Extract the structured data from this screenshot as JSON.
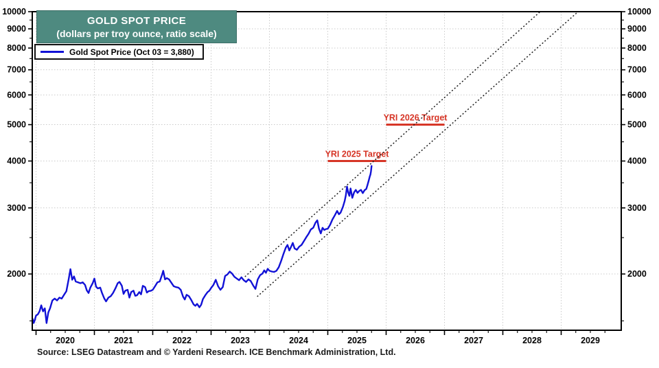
{
  "title": {
    "line1": "GOLD SPOT PRICE",
    "line2": "(dollars per troy ounce, ratio scale)"
  },
  "legend": {
    "label": "Gold Spot Price (Oct 03 = 3,880)"
  },
  "source": "Source: LSEG Datastream and © Yardeni Research. ICE Benchmark Administration, Ltd.",
  "colors": {
    "title_bg": "#4e8a80",
    "title_text": "#ffffff",
    "line": "#1111d6",
    "annotation": "#d63425",
    "grid": "#c9c9c9",
    "channel": "#1a1a1a",
    "axis": "#000000"
  },
  "chart_data": {
    "type": "line",
    "title": "GOLD SPOT PRICE",
    "subtitle": "(dollars per troy ounce, ratio scale)",
    "ylabel": "dollars per troy ounce",
    "yscale": "log",
    "ylim": [
      1420,
      10000
    ],
    "xlim": [
      2019.94,
      2030.03
    ],
    "grid": true,
    "legend_position": "top-left",
    "y_ticks": [
      2000,
      3000,
      4000,
      5000,
      6000,
      7000,
      8000,
      9000,
      10000
    ],
    "y_tick_labels": [
      "2000",
      "3000",
      "4000",
      "5000",
      "6000",
      "7000",
      "8000",
      "9000",
      "10000"
    ],
    "y_minor_ticks": [
      1500,
      2500,
      3500,
      4500,
      5500,
      6500,
      7500,
      8500,
      9500
    ],
    "x_years": [
      "2020",
      "2021",
      "2022",
      "2023",
      "2024",
      "2025",
      "2026",
      "2027",
      "2028",
      "2029"
    ],
    "annotations": [
      {
        "label": "YRI 2025 Target",
        "value": 4000,
        "span": [
          2025.0,
          2026.0
        ]
      },
      {
        "label": "YRI 2026 Target",
        "value": 5000,
        "span": [
          2026.0,
          2027.0
        ]
      }
    ],
    "channel_lines": [
      {
        "name": "upper-trend-channel",
        "points": [
          [
            2023.58,
            1967
          ],
          [
            2028.64,
            10000
          ]
        ]
      },
      {
        "name": "lower-trend-channel",
        "points": [
          [
            2023.79,
            1741
          ],
          [
            2029.29,
            10000
          ]
        ]
      }
    ],
    "series": [
      {
        "name": "Gold Spot Price (Oct 03 = 3,880)",
        "color": "#1111d6",
        "last_point_label": "Oct 03 = 3,880",
        "points": [
          [
            2019.94,
            1520
          ],
          [
            2019.96,
            1480
          ],
          [
            2019.98,
            1510
          ],
          [
            2020.0,
            1550
          ],
          [
            2020.03,
            1560
          ],
          [
            2020.06,
            1590
          ],
          [
            2020.09,
            1650
          ],
          [
            2020.12,
            1590
          ],
          [
            2020.15,
            1620
          ],
          [
            2020.18,
            1480
          ],
          [
            2020.21,
            1580
          ],
          [
            2020.24,
            1620
          ],
          [
            2020.28,
            1700
          ],
          [
            2020.32,
            1720
          ],
          [
            2020.36,
            1700
          ],
          [
            2020.4,
            1730
          ],
          [
            2020.44,
            1720
          ],
          [
            2020.48,
            1760
          ],
          [
            2020.52,
            1800
          ],
          [
            2020.56,
            1940
          ],
          [
            2020.59,
            2060
          ],
          [
            2020.62,
            1930
          ],
          [
            2020.65,
            1970
          ],
          [
            2020.68,
            1910
          ],
          [
            2020.72,
            1900
          ],
          [
            2020.76,
            1890
          ],
          [
            2020.8,
            1900
          ],
          [
            2020.84,
            1870
          ],
          [
            2020.87,
            1810
          ],
          [
            2020.9,
            1780
          ],
          [
            2020.93,
            1840
          ],
          [
            2020.97,
            1890
          ],
          [
            2021.0,
            1945
          ],
          [
            2021.03,
            1850
          ],
          [
            2021.06,
            1830
          ],
          [
            2021.1,
            1840
          ],
          [
            2021.13,
            1780
          ],
          [
            2021.17,
            1720
          ],
          [
            2021.2,
            1690
          ],
          [
            2021.24,
            1730
          ],
          [
            2021.28,
            1745
          ],
          [
            2021.32,
            1780
          ],
          [
            2021.36,
            1830
          ],
          [
            2021.4,
            1890
          ],
          [
            2021.43,
            1905
          ],
          [
            2021.47,
            1860
          ],
          [
            2021.5,
            1770
          ],
          [
            2021.53,
            1805
          ],
          [
            2021.57,
            1815
          ],
          [
            2021.6,
            1730
          ],
          [
            2021.63,
            1790
          ],
          [
            2021.67,
            1805
          ],
          [
            2021.7,
            1750
          ],
          [
            2021.73,
            1755
          ],
          [
            2021.77,
            1790
          ],
          [
            2021.8,
            1765
          ],
          [
            2021.83,
            1860
          ],
          [
            2021.87,
            1845
          ],
          [
            2021.9,
            1785
          ],
          [
            2021.93,
            1800
          ],
          [
            2021.97,
            1805
          ],
          [
            2022.0,
            1815
          ],
          [
            2022.04,
            1855
          ],
          [
            2022.08,
            1900
          ],
          [
            2022.12,
            1910
          ],
          [
            2022.16,
            1990
          ],
          [
            2022.18,
            2040
          ],
          [
            2022.21,
            1935
          ],
          [
            2022.24,
            1950
          ],
          [
            2022.28,
            1935
          ],
          [
            2022.32,
            1895
          ],
          [
            2022.36,
            1855
          ],
          [
            2022.4,
            1845
          ],
          [
            2022.44,
            1840
          ],
          [
            2022.48,
            1815
          ],
          [
            2022.52,
            1740
          ],
          [
            2022.55,
            1710
          ],
          [
            2022.58,
            1760
          ],
          [
            2022.62,
            1745
          ],
          [
            2022.66,
            1705
          ],
          [
            2022.7,
            1660
          ],
          [
            2022.73,
            1645
          ],
          [
            2022.76,
            1665
          ],
          [
            2022.8,
            1630
          ],
          [
            2022.83,
            1655
          ],
          [
            2022.86,
            1715
          ],
          [
            2022.9,
            1755
          ],
          [
            2022.94,
            1790
          ],
          [
            2022.97,
            1805
          ],
          [
            2023.0,
            1835
          ],
          [
            2023.04,
            1870
          ],
          [
            2023.08,
            1930
          ],
          [
            2023.12,
            1855
          ],
          [
            2023.16,
            1815
          ],
          [
            2023.2,
            1845
          ],
          [
            2023.24,
            1975
          ],
          [
            2023.28,
            1995
          ],
          [
            2023.32,
            2030
          ],
          [
            2023.36,
            2005
          ],
          [
            2023.4,
            1965
          ],
          [
            2023.44,
            1945
          ],
          [
            2023.48,
            1925
          ],
          [
            2023.52,
            1960
          ],
          [
            2023.56,
            1925
          ],
          [
            2023.6,
            1905
          ],
          [
            2023.64,
            1935
          ],
          [
            2023.68,
            1915
          ],
          [
            2023.72,
            1865
          ],
          [
            2023.76,
            1825
          ],
          [
            2023.8,
            1935
          ],
          [
            2023.84,
            1985
          ],
          [
            2023.88,
            2005
          ],
          [
            2023.91,
            2045
          ],
          [
            2023.94,
            2015
          ],
          [
            2023.97,
            2065
          ],
          [
            2024.0,
            2040
          ],
          [
            2024.04,
            2030
          ],
          [
            2024.08,
            2025
          ],
          [
            2024.12,
            2040
          ],
          [
            2024.16,
            2085
          ],
          [
            2024.2,
            2165
          ],
          [
            2024.24,
            2260
          ],
          [
            2024.28,
            2350
          ],
          [
            2024.31,
            2390
          ],
          [
            2024.34,
            2310
          ],
          [
            2024.37,
            2360
          ],
          [
            2024.4,
            2420
          ],
          [
            2024.43,
            2340
          ],
          [
            2024.47,
            2320
          ],
          [
            2024.51,
            2365
          ],
          [
            2024.55,
            2390
          ],
          [
            2024.59,
            2445
          ],
          [
            2024.63,
            2505
          ],
          [
            2024.67,
            2560
          ],
          [
            2024.71,
            2630
          ],
          [
            2024.75,
            2655
          ],
          [
            2024.79,
            2740
          ],
          [
            2024.82,
            2780
          ],
          [
            2024.85,
            2640
          ],
          [
            2024.88,
            2565
          ],
          [
            2024.91,
            2655
          ],
          [
            2024.94,
            2620
          ],
          [
            2024.97,
            2635
          ],
          [
            2025.0,
            2640
          ],
          [
            2025.04,
            2705
          ],
          [
            2025.08,
            2795
          ],
          [
            2025.12,
            2865
          ],
          [
            2025.16,
            2945
          ],
          [
            2025.19,
            2885
          ],
          [
            2025.22,
            2915
          ],
          [
            2025.26,
            3020
          ],
          [
            2025.29,
            3130
          ],
          [
            2025.31,
            3240
          ],
          [
            2025.33,
            3420
          ],
          [
            2025.35,
            3300
          ],
          [
            2025.37,
            3230
          ],
          [
            2025.39,
            3380
          ],
          [
            2025.42,
            3190
          ],
          [
            2025.45,
            3300
          ],
          [
            2025.48,
            3350
          ],
          [
            2025.51,
            3290
          ],
          [
            2025.54,
            3330
          ],
          [
            2025.57,
            3350
          ],
          [
            2025.6,
            3285
          ],
          [
            2025.63,
            3345
          ],
          [
            2025.66,
            3370
          ],
          [
            2025.68,
            3450
          ],
          [
            2025.7,
            3540
          ],
          [
            2025.72,
            3640
          ],
          [
            2025.73,
            3680
          ],
          [
            2025.74,
            3750
          ],
          [
            2025.75,
            3880
          ]
        ]
      }
    ]
  }
}
